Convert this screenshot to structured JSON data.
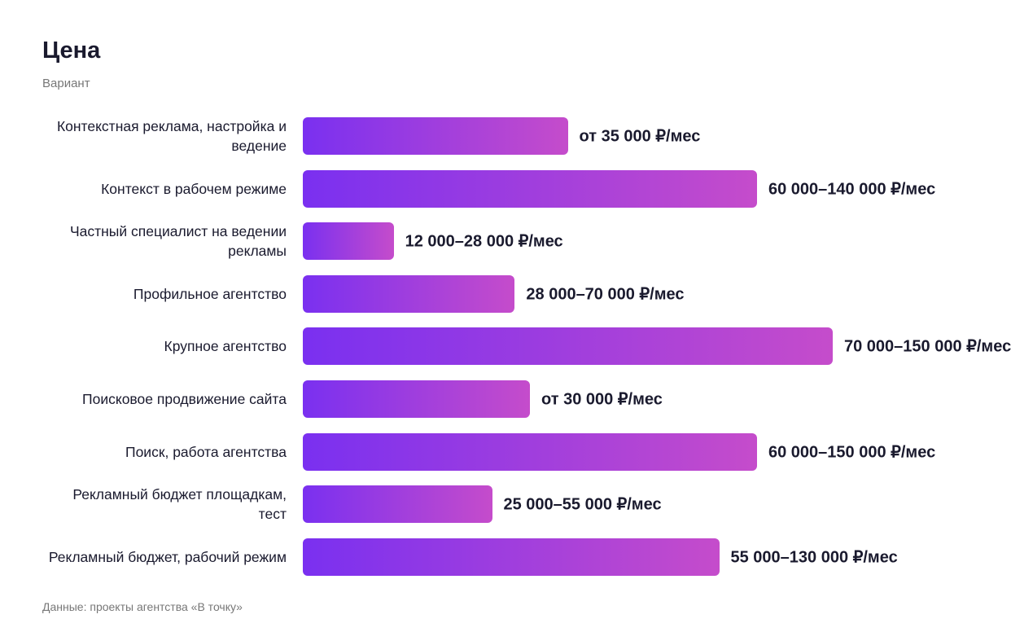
{
  "chart_data": {
    "type": "bar",
    "orientation": "horizontal",
    "title": "Цена",
    "subtitle": "Вариант",
    "categories": [
      "Контекстная реклама, настройка и ведение",
      "Контекст в рабочем режиме",
      "Частный специалист на ведении рекламы",
      "Профильное агентство",
      "Крупное агентство",
      "Поисковое продвижение сайта",
      "Поиск, работа агентства",
      "Рекламный бюджет площадкам, тест",
      "Рекламный бюджет, рабочий режим"
    ],
    "values": [
      35000,
      60000,
      12000,
      28000,
      70000,
      30000,
      60000,
      25000,
      55000
    ],
    "value_labels": [
      "от 35 000 ₽/мес",
      "60 000–140 000 ₽/мес",
      "12 000–28 000 ₽/мес",
      "28 000–70 000 ₽/мес",
      "70 000–150 000 ₽/мес",
      "от 30 000 ₽/мес",
      "60 000–150 000 ₽/мес",
      "25 000–55 000 ₽/мес",
      "55 000–130 000 ₽/мес"
    ],
    "xlim": [
      0,
      70000
    ],
    "gradient": [
      "#7a30f0",
      "#c54ccb"
    ],
    "source": "Данные: проекты агентства «В точку»"
  }
}
